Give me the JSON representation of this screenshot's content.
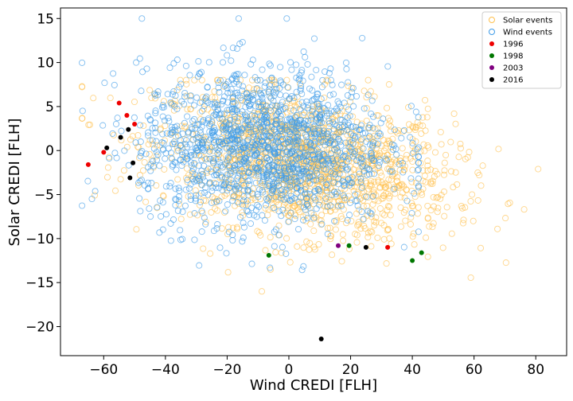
{
  "chart_data": {
    "type": "scatter",
    "xlabel": "Wind CREDI [FLH]",
    "ylabel": "Solar CREDI [FLH]",
    "xlim": [
      -74,
      90
    ],
    "ylim": [
      -23.3,
      16.2
    ],
    "xticks": [
      -60,
      -40,
      -20,
      0,
      20,
      40,
      60,
      80
    ],
    "yticks": [
      -20,
      -15,
      -10,
      -5,
      0,
      5,
      10,
      15
    ],
    "grid": false,
    "legend_position": "top-right",
    "background_series": [
      {
        "name": "Solar events",
        "marker": "hollow-circle",
        "color": "#ffc04d",
        "approx_count": 1500,
        "x_mean": 5,
        "x_sd": 24,
        "x_range": [
          -67,
          87
        ],
        "y_mean": -1.5,
        "y_sd": 4.0,
        "y_range": [
          -16,
          8
        ]
      },
      {
        "name": "Wind events",
        "marker": "hollow-circle",
        "color": "#3d9be8",
        "approx_count": 1500,
        "x_mean": -8,
        "x_sd": 20,
        "x_range": [
          -67,
          42
        ],
        "y_mean": 0.5,
        "y_sd": 4.5,
        "y_range": [
          -19,
          15
        ]
      }
    ],
    "series": [
      {
        "name": "1996",
        "color": "#ee0000",
        "points": [
          [
            -65,
            -1.6
          ],
          [
            -60,
            -0.2
          ],
          [
            -55,
            5.4
          ],
          [
            -52.5,
            4.0
          ],
          [
            -50,
            3.0
          ],
          [
            32,
            -11.0
          ]
        ]
      },
      {
        "name": "1998",
        "color": "#007700",
        "points": [
          [
            -6.5,
            -11.9
          ],
          [
            19.5,
            -10.8
          ],
          [
            40,
            -12.5
          ],
          [
            43,
            -11.6
          ]
        ]
      },
      {
        "name": "2003",
        "color": "#800080",
        "points": [
          [
            16,
            -10.8
          ]
        ]
      },
      {
        "name": "2016",
        "color": "#000000",
        "points": [
          [
            -59,
            0.3
          ],
          [
            -54.5,
            1.5
          ],
          [
            -52,
            2.4
          ],
          [
            -51.5,
            -3.1
          ],
          [
            -50.5,
            -1.4
          ],
          [
            10.5,
            -21.4
          ],
          [
            25,
            -11.0
          ]
        ]
      }
    ]
  }
}
